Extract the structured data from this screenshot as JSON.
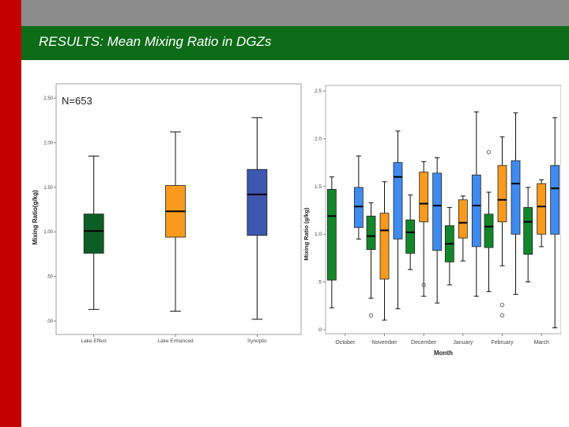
{
  "slide_title": "RESULTS: Mean Mixing Ratio in DGZs",
  "colors": {
    "left_bar": "#c40000",
    "top_bar": "#8c8c8c",
    "title_bar": "#0e6b18",
    "lake_effect": "#0d5e26",
    "lake_enhanced": "#f79a1e",
    "synoptic": "#3e57b0",
    "r_green": "#13862b",
    "r_orange": "#f79a1e",
    "r_blue": "#3f8bf0"
  },
  "chart_data": [
    {
      "type": "boxplot",
      "annotation": "N=653",
      "ylabel": "Mixing Ratio(g/kg)",
      "xlabel": "",
      "ylim": [
        0,
        2.5
      ],
      "yticks": [
        0,
        0.5,
        1.0,
        1.5,
        2.0,
        2.5
      ],
      "ytick_labels": [
        ".00",
        ".50",
        "1.00",
        "1.50",
        "2.00",
        "2.50"
      ],
      "grid": false,
      "categories": [
        "Lake Effect",
        "Lake Enhanced",
        "Synoptic"
      ],
      "boxes": [
        {
          "category": "Lake Effect",
          "whisker_low": 0.13,
          "q1": 0.76,
          "median": 1.01,
          "q3": 1.2,
          "whisker_high": 1.85,
          "color": "#0d5e26"
        },
        {
          "category": "Lake Enhanced",
          "whisker_low": 0.11,
          "q1": 0.94,
          "median": 1.23,
          "q3": 1.52,
          "whisker_high": 2.12,
          "color": "#f79a1e"
        },
        {
          "category": "Synoptic",
          "whisker_low": 0.02,
          "q1": 0.96,
          "median": 1.42,
          "q3": 1.7,
          "whisker_high": 2.28,
          "color": "#3e57b0"
        }
      ]
    },
    {
      "type": "boxplot",
      "xlabel": "Month",
      "ylabel": "Mixing Ratio (g/kg)",
      "ylim": [
        0,
        2.5
      ],
      "yticks": [
        0,
        0.5,
        1.0,
        1.5,
        2.0,
        2.5
      ],
      "ytick_labels": [
        ".0",
        ".5",
        "1.0",
        "1.5",
        "2.0",
        "2.5"
      ],
      "grid": false,
      "categories": [
        "October",
        "November",
        "December",
        "January",
        "February",
        "March"
      ],
      "series": [
        {
          "color": "#13862b",
          "boxes": [
            {
              "whisker_low": 0.23,
              "q1": 0.52,
              "median": 1.19,
              "q3": 1.47,
              "whisker_high": 1.6,
              "outliers": []
            },
            {
              "whisker_low": 0.33,
              "q1": 0.84,
              "median": 0.98,
              "q3": 1.19,
              "whisker_high": 1.33,
              "outliers": [
                0.15
              ]
            },
            {
              "whisker_low": 0.63,
              "q1": 0.8,
              "median": 1.02,
              "q3": 1.15,
              "whisker_high": 1.41,
              "outliers": []
            },
            {
              "whisker_low": 0.47,
              "q1": 0.71,
              "median": 0.9,
              "q3": 1.09,
              "whisker_high": 1.28,
              "outliers": []
            },
            {
              "whisker_low": 0.4,
              "q1": 0.86,
              "median": 1.08,
              "q3": 1.21,
              "whisker_high": 1.44,
              "outliers": [
                1.86
              ]
            },
            {
              "whisker_low": 0.5,
              "q1": 0.79,
              "median": 1.13,
              "q3": 1.28,
              "whisker_high": 1.49,
              "outliers": []
            }
          ]
        },
        {
          "color": "#f79a1e",
          "boxes": [
            null,
            {
              "whisker_low": 0.1,
              "q1": 0.53,
              "median": 1.04,
              "q3": 1.22,
              "whisker_high": 1.55,
              "outliers": []
            },
            {
              "whisker_low": 0.35,
              "q1": 1.13,
              "median": 1.32,
              "q3": 1.65,
              "whisker_high": 1.76,
              "outliers": [
                0.47
              ]
            },
            {
              "whisker_low": 0.72,
              "q1": 0.96,
              "median": 1.12,
              "q3": 1.36,
              "whisker_high": 1.4,
              "outliers": []
            },
            {
              "whisker_low": 0.67,
              "q1": 1.13,
              "median": 1.36,
              "q3": 1.72,
              "whisker_high": 2.02,
              "outliers": [
                0.26,
                0.15
              ]
            },
            {
              "whisker_low": 0.87,
              "q1": 1.0,
              "median": 1.29,
              "q3": 1.53,
              "whisker_high": 1.57,
              "outliers": []
            }
          ]
        },
        {
          "color": "#3f8bf0",
          "boxes": [
            {
              "whisker_low": 0.95,
              "q1": 1.07,
              "median": 1.29,
              "q3": 1.49,
              "whisker_high": 1.82,
              "outliers": []
            },
            {
              "whisker_low": 0.22,
              "q1": 0.95,
              "median": 1.6,
              "q3": 1.75,
              "whisker_high": 2.08,
              "outliers": []
            },
            {
              "whisker_low": 0.28,
              "q1": 0.83,
              "median": 1.3,
              "q3": 1.64,
              "whisker_high": 1.8,
              "outliers": []
            },
            {
              "whisker_low": 0.35,
              "q1": 0.87,
              "median": 1.3,
              "q3": 1.62,
              "whisker_high": 2.28,
              "outliers": []
            },
            {
              "whisker_low": 0.37,
              "q1": 1.0,
              "median": 1.53,
              "q3": 1.77,
              "whisker_high": 2.27,
              "outliers": []
            },
            {
              "whisker_low": 0.02,
              "q1": 1.0,
              "median": 1.48,
              "q3": 1.72,
              "whisker_high": 2.22,
              "outliers": []
            }
          ]
        }
      ]
    }
  ]
}
